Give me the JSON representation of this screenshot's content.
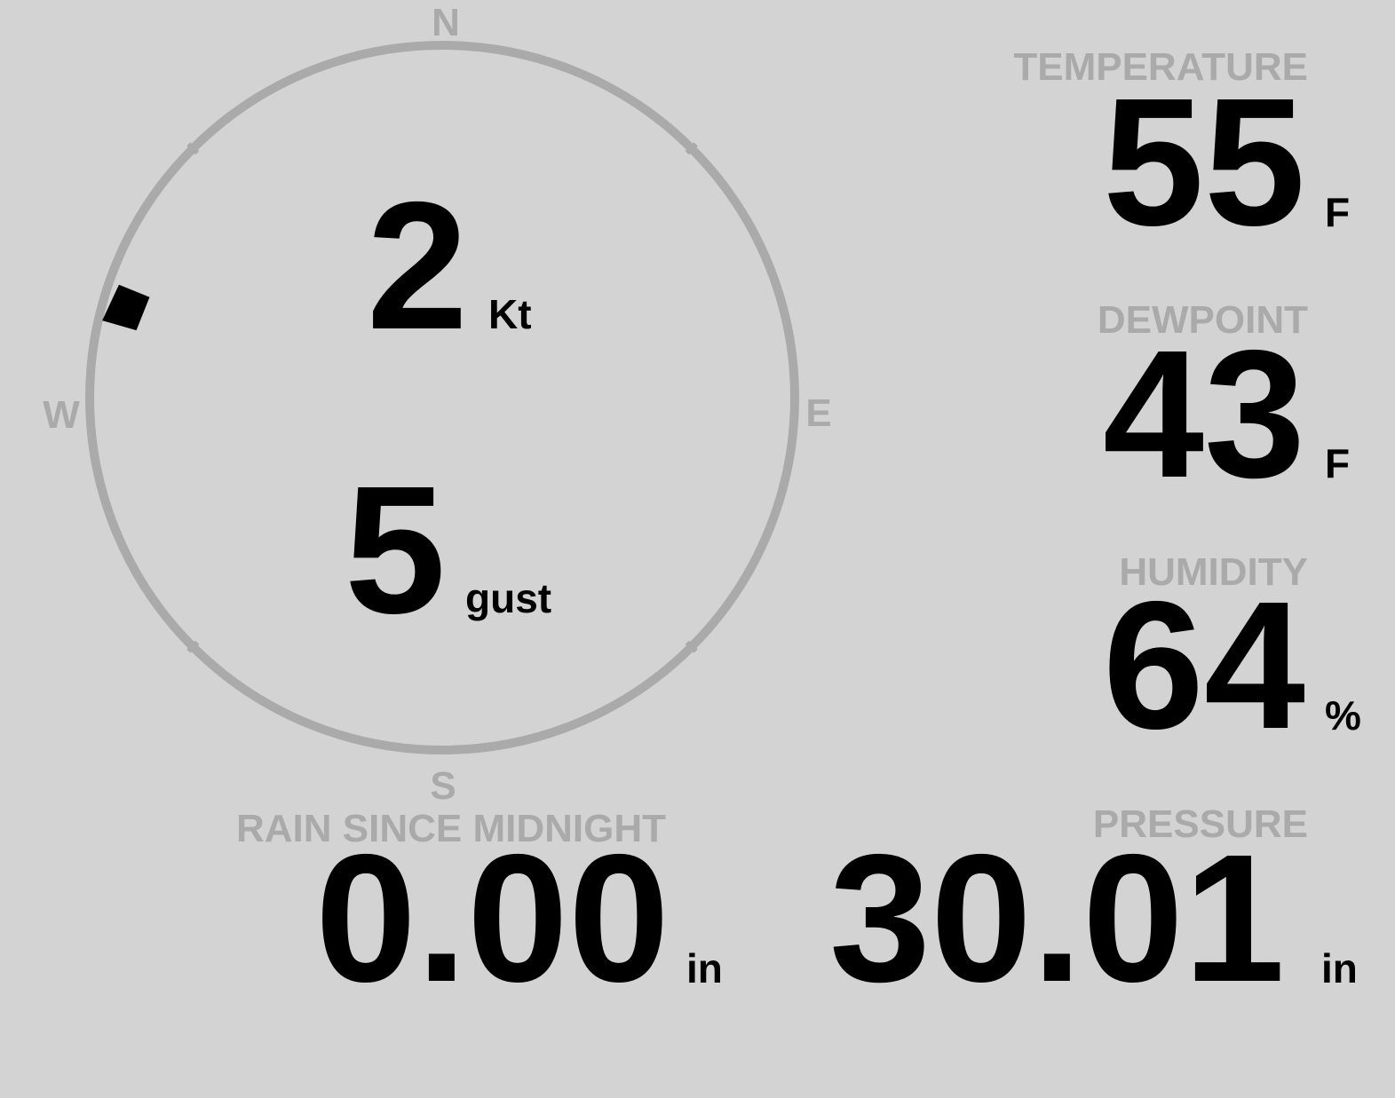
{
  "colors": {
    "background": "#d3d3d3",
    "label": "#aaaaaa",
    "value": "#000000",
    "dial": "#aaaaaa"
  },
  "compass": {
    "n": "N",
    "e": "E",
    "s": "S",
    "w": "W"
  },
  "wind": {
    "speed": "2",
    "speed_unit": "Kt",
    "gust": "5",
    "gust_unit": "gust",
    "direction_deg": 286,
    "marker_icon": "wind-direction-marker"
  },
  "temperature": {
    "label": "TEMPERATURE",
    "value": "55",
    "unit": "F"
  },
  "dewpoint": {
    "label": "DEWPOINT",
    "value": "43",
    "unit": "F"
  },
  "humidity": {
    "label": "HUMIDITY",
    "value": "64",
    "unit": "%"
  },
  "rain": {
    "label": "RAIN SINCE MIDNIGHT",
    "value": "0.00",
    "unit": "in"
  },
  "pressure": {
    "label": "PRESSURE",
    "value": "30.01",
    "unit": "in"
  }
}
